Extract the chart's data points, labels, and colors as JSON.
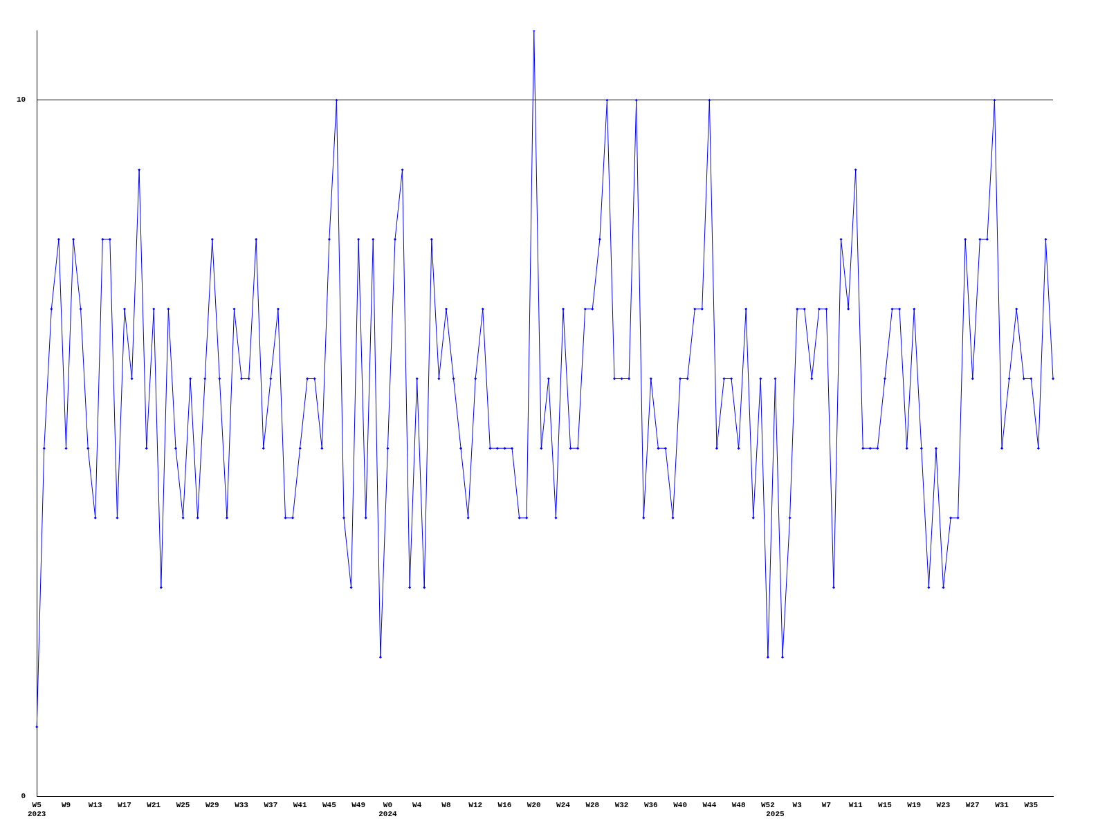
{
  "chart_data": {
    "type": "line",
    "categories": [
      "W5\n2023",
      null,
      null,
      null,
      "W9",
      null,
      null,
      null,
      "W13",
      null,
      null,
      null,
      "W17",
      null,
      null,
      null,
      "W21",
      null,
      null,
      null,
      "W25",
      null,
      null,
      null,
      "W29",
      null,
      null,
      null,
      "W33",
      null,
      null,
      null,
      "W37",
      null,
      null,
      null,
      "W41",
      null,
      null,
      null,
      "W45",
      null,
      null,
      null,
      "W49",
      null,
      null,
      null,
      "W0\n2024",
      null,
      null,
      null,
      "W4",
      null,
      null,
      null,
      "W8",
      null,
      null,
      null,
      "W12",
      null,
      null,
      null,
      "W16",
      null,
      null,
      null,
      "W20",
      null,
      null,
      null,
      "W24",
      null,
      null,
      null,
      "W28",
      null,
      null,
      null,
      "W32",
      null,
      null,
      null,
      "W36",
      null,
      null,
      null,
      "W40",
      null,
      null,
      null,
      "W44",
      null,
      null,
      null,
      "W48",
      null,
      null,
      null,
      "W52",
      "\n2025",
      null,
      null,
      "W3",
      null,
      null,
      null,
      "W7",
      null,
      null,
      null,
      "W11",
      null,
      null,
      null,
      "W15",
      null,
      null,
      null,
      "W19",
      null,
      null,
      null,
      "W23",
      null,
      null,
      null,
      "W27",
      null,
      null,
      null,
      "W31",
      null,
      null,
      null,
      "W35",
      null,
      null,
      null
    ],
    "series": [
      {
        "color": "#0000ff",
        "values": [
          1,
          5,
          7,
          8,
          5,
          8,
          7,
          5,
          4,
          8,
          8,
          4,
          7,
          6,
          9,
          5,
          7,
          3,
          7,
          5,
          4,
          6,
          4,
          6,
          8,
          6,
          4,
          7,
          6,
          6,
          8,
          5,
          6,
          7,
          4,
          4,
          5,
          6,
          6,
          5,
          8,
          10,
          4,
          3,
          8,
          4,
          8,
          2,
          5,
          8,
          9,
          3,
          6,
          3,
          8,
          6,
          7,
          6,
          5,
          4,
          6,
          7,
          5,
          5,
          5,
          5,
          4,
          4,
          11,
          5,
          6,
          4,
          7,
          5,
          5,
          7,
          7,
          8,
          10,
          6,
          6,
          6,
          10,
          4,
          6,
          5,
          5,
          4,
          6,
          6,
          7,
          7,
          10,
          5,
          6,
          6,
          5,
          7,
          4,
          6,
          2,
          6,
          2,
          4,
          7,
          7,
          6,
          7,
          7,
          3,
          8,
          7,
          9,
          5,
          5,
          5,
          6,
          7,
          7,
          5,
          7,
          5,
          3,
          5,
          3,
          4,
          4,
          8,
          6,
          8,
          8,
          10,
          5,
          6,
          7,
          6,
          6,
          5,
          8,
          6
        ]
      }
    ],
    "ylim": [
      0,
      11
    ],
    "yticks": [
      0,
      10
    ],
    "grid": "y",
    "marker": "diamond",
    "line_style": "solid",
    "legend": false
  }
}
